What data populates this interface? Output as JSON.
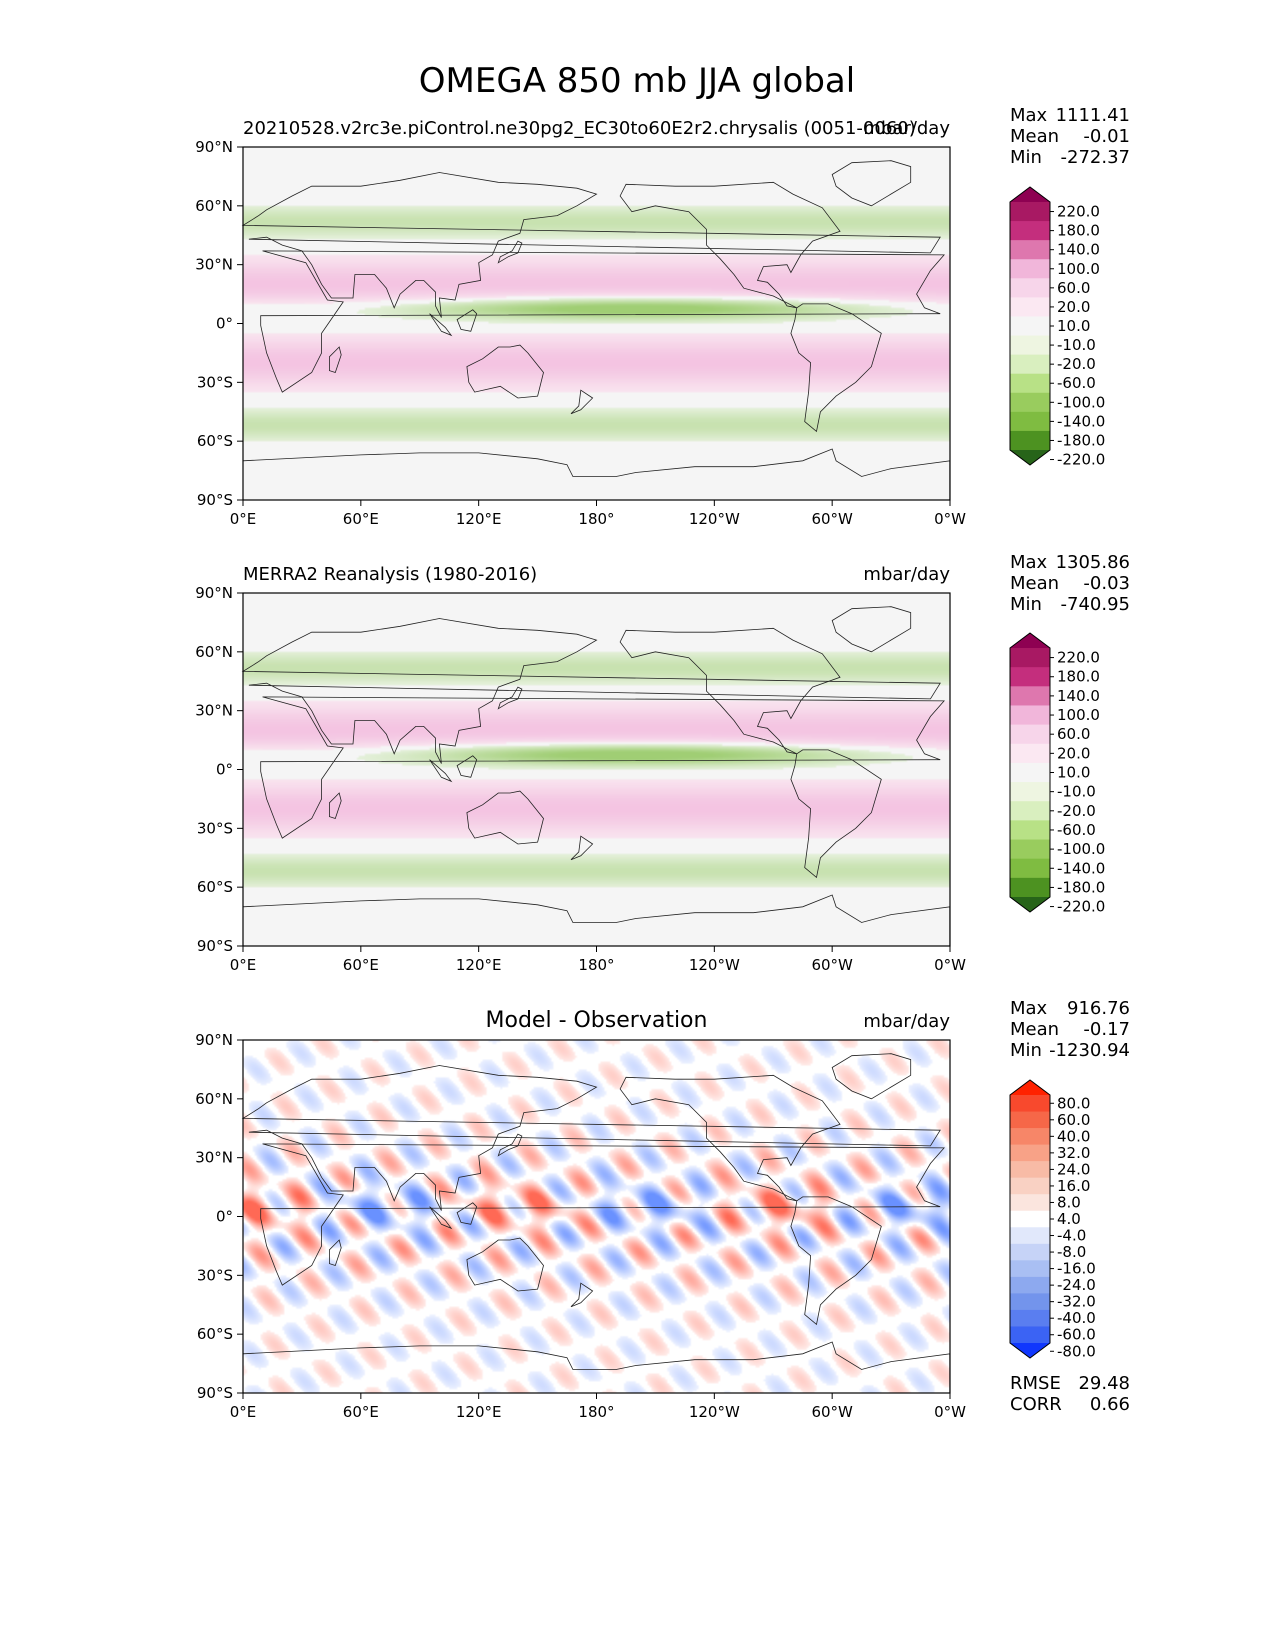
{
  "title": "OMEGA 850 mb JJA global",
  "chart_data": [
    {
      "type": "heatmap",
      "panel": "test",
      "left_title": "20210528.v2rc3e.piControl.ne30pg2_EC30to60E2r2.chrysalis (0051-0060)",
      "right_title": "mbar/day",
      "center_title": "",
      "x_ticks": [
        "0°E",
        "60°E",
        "120°E",
        "180°",
        "120°W",
        "60°W",
        "0°W"
      ],
      "y_ticks": [
        "90°N",
        "60°N",
        "30°N",
        "0°",
        "30°S",
        "60°S",
        "90°S"
      ],
      "xlim": [
        0,
        360
      ],
      "ylim": [
        -90,
        90
      ],
      "stats": {
        "max_label": "Max",
        "max": "1111.41",
        "mean_label": "Mean",
        "mean": "-0.01",
        "min_label": "Min",
        "min": "-272.37"
      },
      "colorbar": {
        "levels": [
          "220.0",
          "180.0",
          "140.0",
          "100.0",
          "60.0",
          "20.0",
          "10.0",
          "-10.0",
          "-20.0",
          "-60.0",
          "-100.0",
          "-140.0",
          "-180.0",
          "-220.0"
        ],
        "colors": [
          "#8e0152",
          "#a81963",
          "#c42e7d",
          "#de77ae",
          "#f1b6da",
          "#f7d5ea",
          "#fbe8f2",
          "#f5f5f5",
          "#eef5e1",
          "#d9efbf",
          "#b8e186",
          "#99cc5e",
          "#7fbc41",
          "#4d9221",
          "#276419"
        ]
      }
    },
    {
      "type": "heatmap",
      "panel": "reference",
      "left_title": "MERRA2 Reanalysis (1980-2016)",
      "right_title": "mbar/day",
      "center_title": "",
      "x_ticks": [
        "0°E",
        "60°E",
        "120°E",
        "180°",
        "120°W",
        "60°W",
        "0°W"
      ],
      "y_ticks": [
        "90°N",
        "60°N",
        "30°N",
        "0°",
        "30°S",
        "60°S",
        "90°S"
      ],
      "xlim": [
        0,
        360
      ],
      "ylim": [
        -90,
        90
      ],
      "stats": {
        "max_label": "Max",
        "max": "1305.86",
        "mean_label": "Mean",
        "mean": "-0.03",
        "min_label": "Min",
        "min": "-740.95"
      },
      "colorbar": {
        "levels": [
          "220.0",
          "180.0",
          "140.0",
          "100.0",
          "60.0",
          "20.0",
          "10.0",
          "-10.0",
          "-20.0",
          "-60.0",
          "-100.0",
          "-140.0",
          "-180.0",
          "-220.0"
        ],
        "colors": [
          "#8e0152",
          "#a81963",
          "#c42e7d",
          "#de77ae",
          "#f1b6da",
          "#f7d5ea",
          "#fbe8f2",
          "#f5f5f5",
          "#eef5e1",
          "#d9efbf",
          "#b8e186",
          "#99cc5e",
          "#7fbc41",
          "#4d9221",
          "#276419"
        ]
      }
    },
    {
      "type": "heatmap",
      "panel": "difference",
      "left_title": "",
      "right_title": "mbar/day",
      "center_title": "Model - Observation",
      "x_ticks": [
        "0°E",
        "60°E",
        "120°E",
        "180°",
        "120°W",
        "60°W",
        "0°W"
      ],
      "y_ticks": [
        "90°N",
        "60°N",
        "30°N",
        "0°",
        "30°S",
        "60°S",
        "90°S"
      ],
      "xlim": [
        0,
        360
      ],
      "ylim": [
        -90,
        90
      ],
      "stats": {
        "max_label": "Max",
        "max": "916.76",
        "mean_label": "Mean",
        "mean": "-0.17",
        "min_label": "Min",
        "min": "-1230.94"
      },
      "metrics": {
        "rmse_label": "RMSE",
        "rmse": "29.48",
        "corr_label": "CORR",
        "corr": "0.66"
      },
      "colorbar": {
        "levels": [
          "80.0",
          "60.0",
          "40.0",
          "32.0",
          "24.0",
          "16.0",
          "8.0",
          "4.0",
          "-4.0",
          "-8.0",
          "-16.0",
          "-24.0",
          "-32.0",
          "-40.0",
          "-60.0",
          "-80.0"
        ],
        "colors": [
          "#ff2200",
          "#f8492d",
          "#f66748",
          "#f78668",
          "#f8a287",
          "#f8bba6",
          "#f9d1c3",
          "#fbe5de",
          "#ffffff",
          "#e1e8fb",
          "#c6d3f7",
          "#a9bff3",
          "#8da9ef",
          "#7394ec",
          "#5a7ef0",
          "#3b63f4",
          "#1037fd"
        ]
      }
    }
  ]
}
